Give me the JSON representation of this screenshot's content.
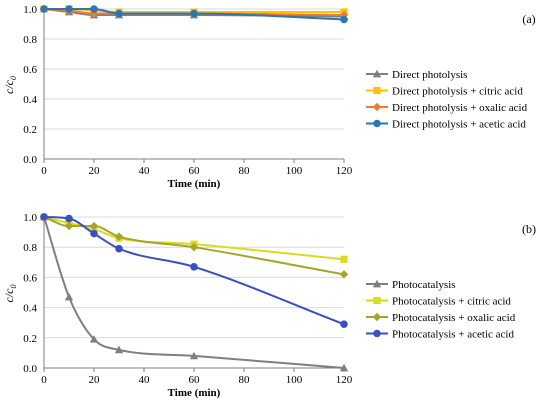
{
  "chart_data": [
    {
      "type": "line",
      "panel_label": "(a)",
      "xlabel": "Time (min)",
      "ylabel_main": "c/c",
      "ylabel_sub": "0",
      "x": [
        0,
        10,
        20,
        30,
        60,
        120
      ],
      "xlim": [
        0,
        120
      ],
      "ylim": [
        0,
        1
      ],
      "xticks": [
        0,
        20,
        40,
        60,
        80,
        100,
        120
      ],
      "yticks": [
        0.0,
        0.2,
        0.4,
        0.6,
        0.8,
        1.0
      ],
      "ytick_labels": [
        "0.0",
        "0.2",
        "0.4",
        "0.6",
        "0.8",
        "1.0"
      ],
      "grid": "horizontal",
      "legend_position": "right",
      "series": [
        {
          "name": "Direct photolysis",
          "color": "#808080",
          "marker": "triangle",
          "values": [
            1.0,
            0.98,
            0.96,
            0.96,
            0.96,
            0.95
          ]
        },
        {
          "name": "Direct photolysis + citric acid",
          "color": "#FFC000",
          "marker": "square",
          "values": [
            1.0,
            1.0,
            0.99,
            0.98,
            0.98,
            0.98
          ]
        },
        {
          "name": "Direct photolysis + oxalic acid",
          "color": "#ED7D31",
          "marker": "diamond",
          "values": [
            1.0,
            0.99,
            0.97,
            0.97,
            0.97,
            0.96
          ]
        },
        {
          "name": "Direct photolysis + acetic acid",
          "color": "#2E75B6",
          "marker": "circle",
          "values": [
            1.0,
            1.0,
            1.0,
            0.97,
            0.97,
            0.93
          ]
        }
      ]
    },
    {
      "type": "line",
      "panel_label": "(b)",
      "xlabel": "Time (min)",
      "ylabel_main": "c/c",
      "ylabel_sub": "0",
      "x": [
        0,
        10,
        20,
        30,
        60,
        120
      ],
      "xlim": [
        0,
        120
      ],
      "ylim": [
        0,
        1
      ],
      "xticks": [
        0,
        20,
        40,
        60,
        80,
        100,
        120
      ],
      "yticks": [
        0.0,
        0.2,
        0.4,
        0.6,
        0.8,
        1.0
      ],
      "ytick_labels": [
        "0.0",
        "0.2",
        "0.4",
        "0.6",
        "0.8",
        "1.0"
      ],
      "grid": "horizontal",
      "legend_position": "right",
      "series": [
        {
          "name": "Photocatalysis",
          "color": "#7F7F7F",
          "marker": "triangle",
          "values": [
            1.0,
            0.47,
            0.19,
            0.12,
            0.08,
            0.0
          ]
        },
        {
          "name": "Photocatalysis + citric acid",
          "color": "#DADA1E",
          "marker": "square",
          "values": [
            1.0,
            0.96,
            0.92,
            0.86,
            0.82,
            0.72
          ]
        },
        {
          "name": "Photocatalysis + oxalic acid",
          "color": "#A5A52A",
          "marker": "diamond",
          "values": [
            1.0,
            0.94,
            0.94,
            0.87,
            0.8,
            0.62
          ]
        },
        {
          "name": "Photocatalysis + acetic acid",
          "color": "#3A4FC1",
          "marker": "circle",
          "values": [
            1.0,
            0.99,
            0.89,
            0.79,
            0.67,
            0.29
          ]
        }
      ]
    }
  ]
}
